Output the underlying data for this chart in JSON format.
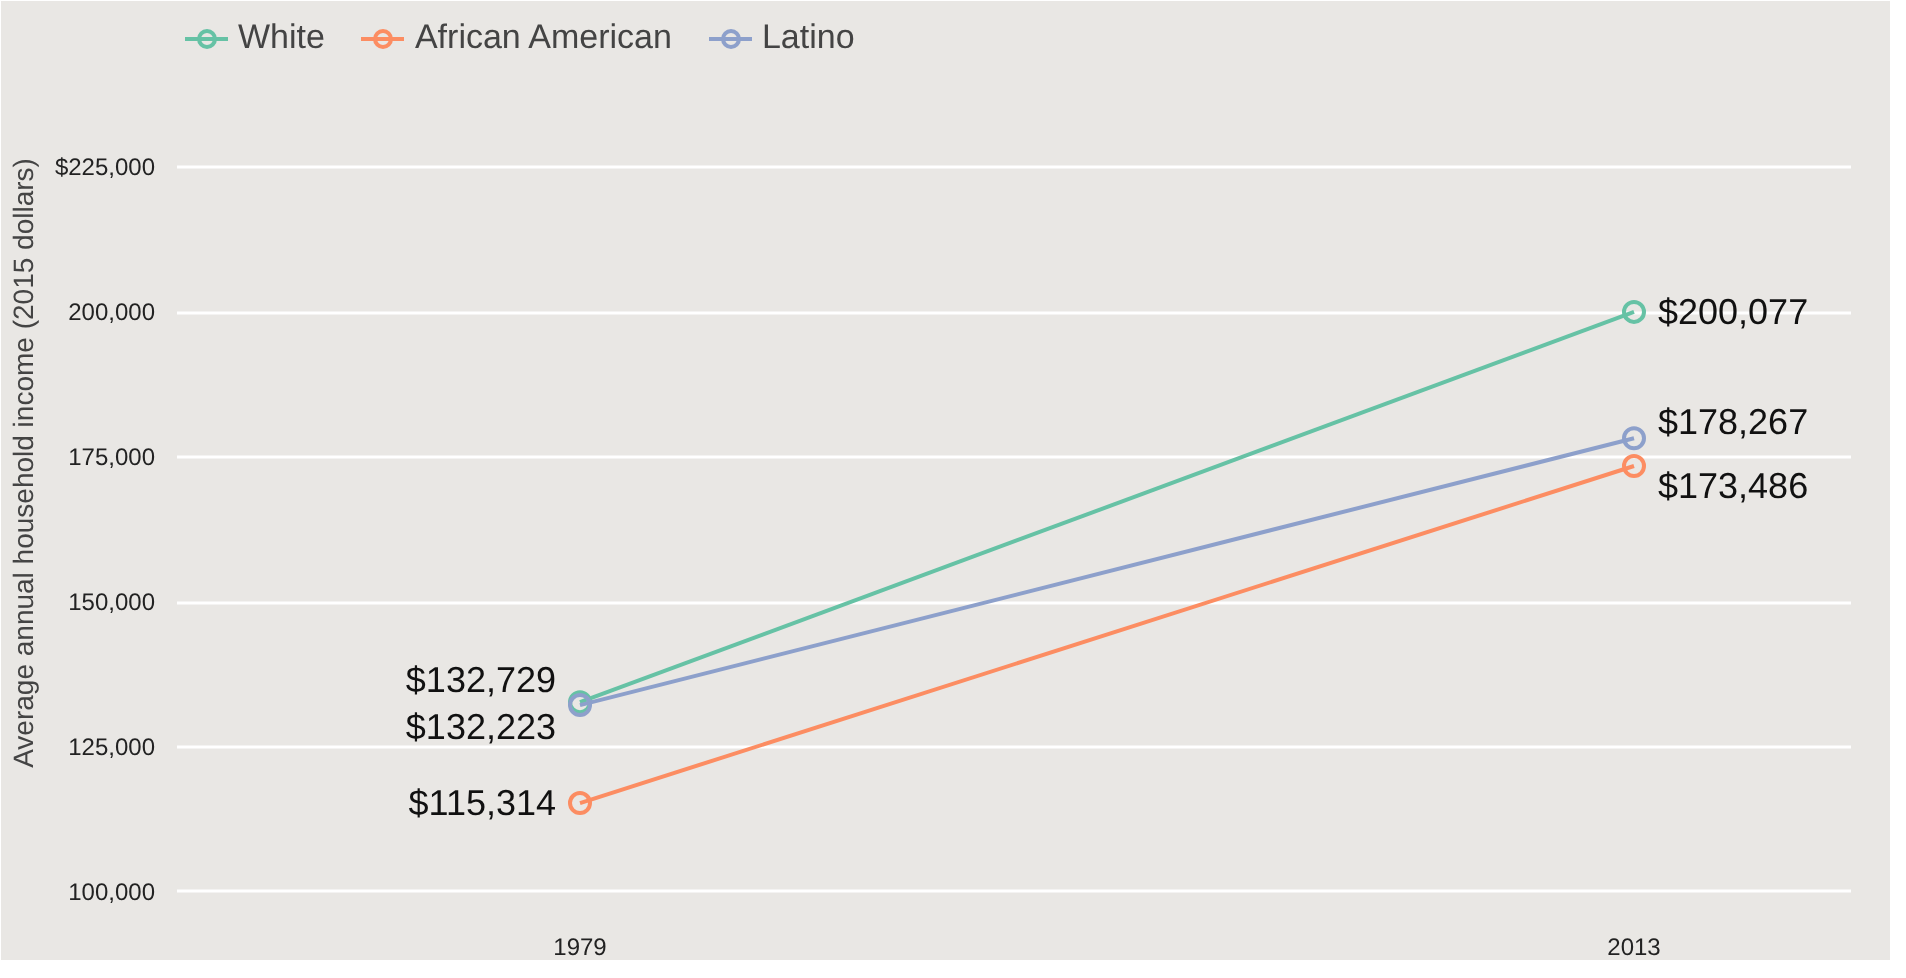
{
  "chart_data": {
    "type": "line",
    "ylabel": "Average annual household income (2015 dollars)",
    "x": [
      1979,
      2013
    ],
    "xlim": [
      1966,
      2020
    ],
    "xticks": [
      1979,
      2013
    ],
    "series": [
      {
        "name": "White",
        "color": "#66c2a5",
        "values": [
          132729,
          200077
        ],
        "value_labels": [
          "$132,729",
          "$200,077"
        ]
      },
      {
        "name": "African American",
        "color": "#fc8d62",
        "values": [
          115314,
          173486
        ],
        "value_labels": [
          "$115,314",
          "$173,486"
        ]
      },
      {
        "name": "Latino",
        "color": "#8da0cb",
        "values": [
          132223,
          178267
        ],
        "value_labels": [
          "$132,223",
          "$178,267"
        ]
      }
    ],
    "ylim": [
      96000,
      252000
    ],
    "yticks": [
      {
        "value": 100000,
        "label": "100,000"
      },
      {
        "value": 125000,
        "label": "125,000"
      },
      {
        "value": 150000,
        "label": "150,000"
      },
      {
        "value": 175000,
        "label": "175,000"
      },
      {
        "value": 200000,
        "label": "200,000"
      },
      {
        "value": 225000,
        "label": "$225,000"
      }
    ],
    "grid": "y",
    "legend": "top left",
    "marker": "circle",
    "line_style": "solid"
  }
}
